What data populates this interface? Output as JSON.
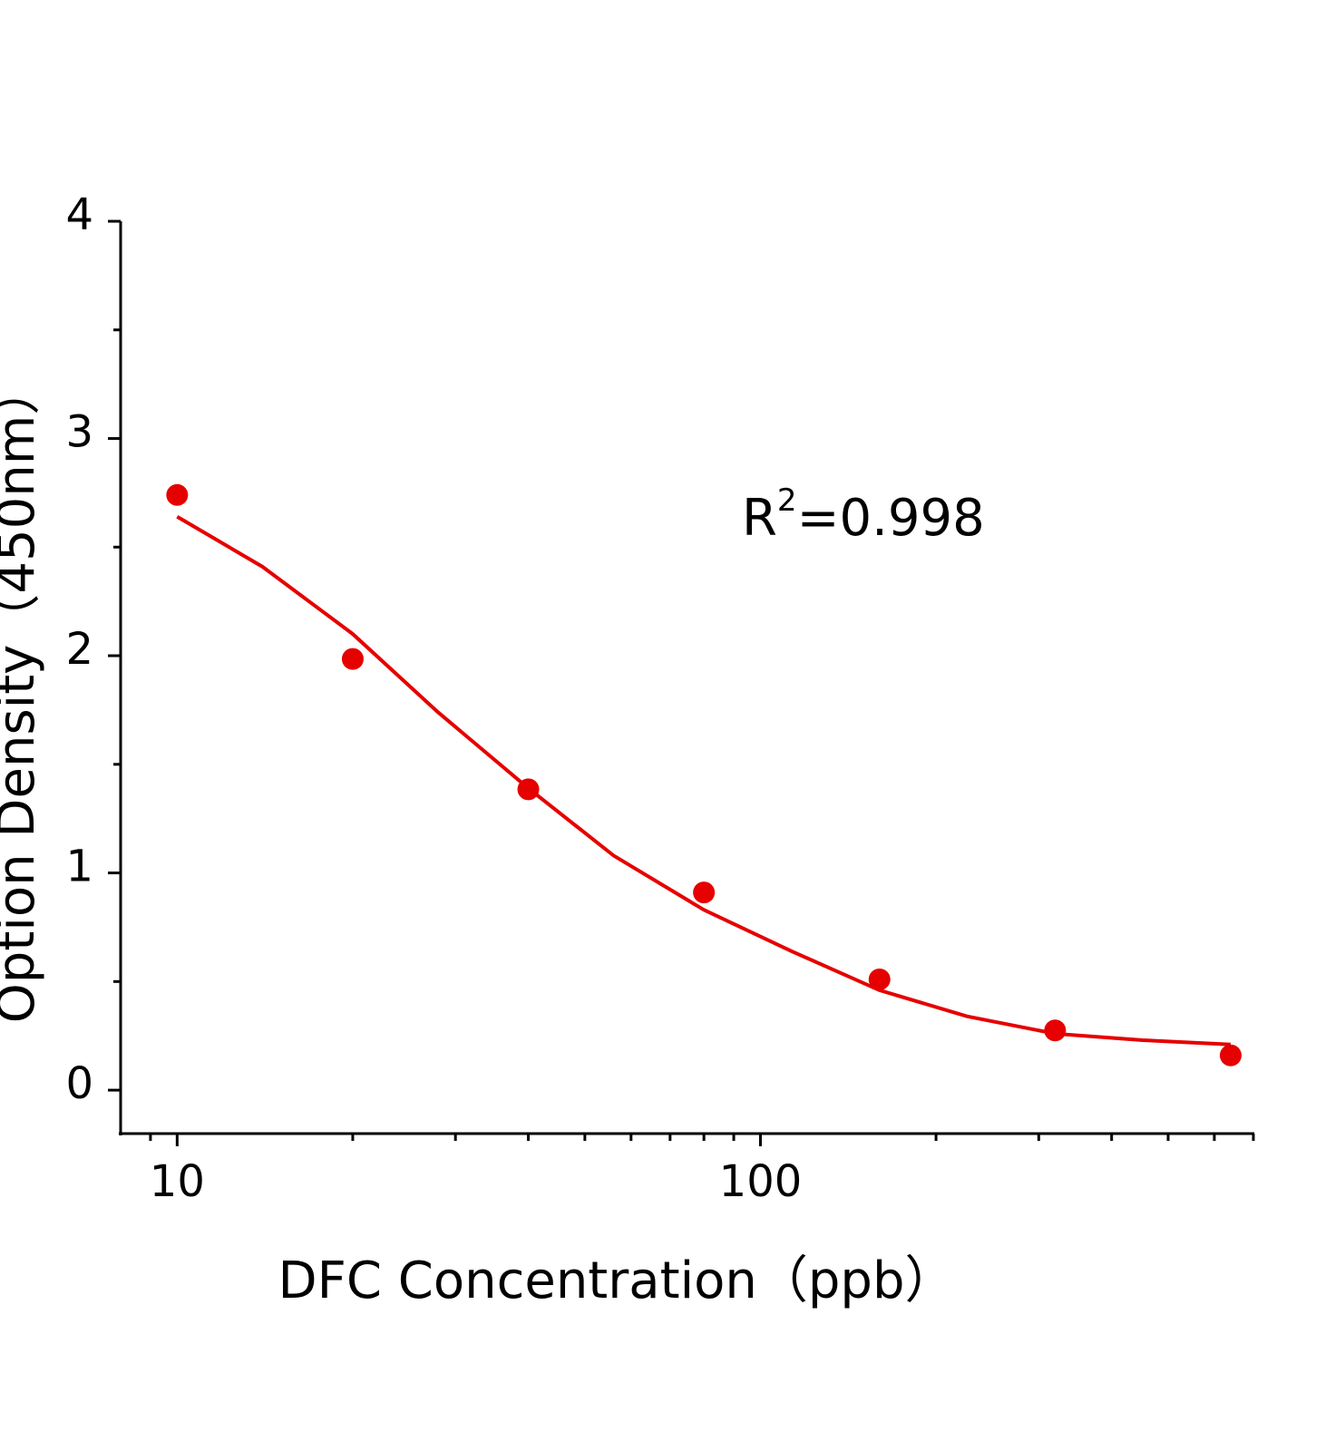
{
  "chart_data": {
    "type": "scatter",
    "xlabel": "DFC Concentration（ppb）",
    "ylabel": "Option Density（450nm）",
    "annotation": [
      "R",
      "2",
      "=0.998"
    ],
    "x": [
      10,
      20,
      40,
      80,
      160,
      320,
      640
    ],
    "values": [
      2.74,
      1.985,
      1.385,
      0.91,
      0.51,
      0.275,
      0.16
    ],
    "color": "#e60000",
    "fit": {
      "x": [
        10,
        14,
        20,
        28,
        40,
        56,
        80,
        113,
        160,
        226,
        320,
        452,
        640
      ],
      "values": [
        2.64,
        2.41,
        2.1,
        1.74,
        1.39,
        1.08,
        0.83,
        0.64,
        0.46,
        0.34,
        0.26,
        0.23,
        0.21
      ],
      "color": "#e60000"
    },
    "xscale": "log",
    "xlim": [
      8,
      700
    ],
    "xticks": [
      10,
      100
    ],
    "xminorticks": [
      9,
      20,
      30,
      40,
      50,
      60,
      70,
      80,
      90,
      200,
      300,
      400,
      500,
      600,
      700
    ],
    "ylim": [
      -0.2,
      4
    ],
    "yticks": [
      0,
      1,
      2,
      3,
      4
    ],
    "yminorticks": [
      0.5,
      1.5,
      2.5,
      3.5
    ],
    "grid": false
  }
}
